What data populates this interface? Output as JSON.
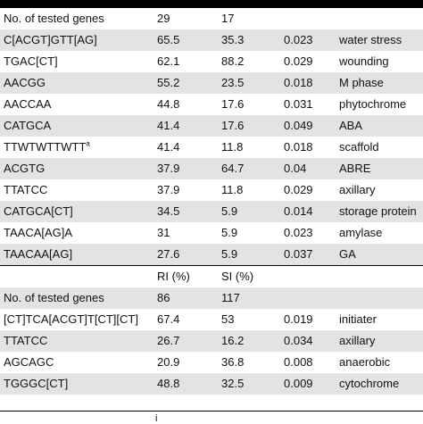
{
  "section1": {
    "header_count_label": "No. of tested genes",
    "header_count_values": [
      "29",
      "17"
    ],
    "rows": [
      {
        "motif": "C[ACGT]GTT[AG]",
        "v1": "65.5",
        "v2": "35.3",
        "p": "0.023",
        "func": "water stress",
        "sup": ""
      },
      {
        "motif": "TGAC[CT]",
        "v1": "62.1",
        "v2": "88.2",
        "p": "0.029",
        "func": "wounding",
        "sup": ""
      },
      {
        "motif": "AACGG",
        "v1": "55.2",
        "v2": "23.5",
        "p": "0.018",
        "func": "M phase",
        "sup": ""
      },
      {
        "motif": "AACCAA",
        "v1": "44.8",
        "v2": "17.6",
        "p": "0.031",
        "func": "phytochrome",
        "sup": ""
      },
      {
        "motif": "CATGCA",
        "v1": "41.4",
        "v2": "17.6",
        "p": "0.049",
        "func": "ABA",
        "sup": ""
      },
      {
        "motif": "TTWTWTTWTT",
        "v1": "41.4",
        "v2": "11.8",
        "p": "0.018",
        "func": "scaffold",
        "sup": "a"
      },
      {
        "motif": "ACGTG",
        "v1": "37.9",
        "v2": "64.7",
        "p": "0.04",
        "func": "ABRE",
        "sup": ""
      },
      {
        "motif": "TTATCC",
        "v1": "37.9",
        "v2": "11.8",
        "p": "0.029",
        "func": "axillary",
        "sup": ""
      },
      {
        "motif": "CATGCA[CT]",
        "v1": "34.5",
        "v2": "5.9",
        "p": "0.014",
        "func": "storage protein",
        "sup": ""
      },
      {
        "motif": "TAACA[AG]A",
        "v1": "31",
        "v2": "5.9",
        "p": "0.023",
        "func": "amylase",
        "sup": ""
      },
      {
        "motif": "TAACAA[AG]",
        "v1": "27.6",
        "v2": "5.9",
        "p": "0.037",
        "func": "GA",
        "sup": ""
      }
    ]
  },
  "section2": {
    "col_headers": [
      "RI (%)",
      "SI (%)"
    ],
    "header_count_label": "No. of tested genes",
    "header_count_values": [
      "86",
      "117"
    ],
    "rows": [
      {
        "motif": "[CT]TCA[ACGT]T[CT][CT]",
        "v1": "67.4",
        "v2": "53",
        "p": "0.019",
        "func": "initiater"
      },
      {
        "motif": "TTATCC",
        "v1": "26.7",
        "v2": "16.2",
        "p": "0.034",
        "func": "axillary"
      },
      {
        "motif": "AGCAGC",
        "v1": "20.9",
        "v2": "36.8",
        "p": "0.008",
        "func": "anaerobic"
      },
      {
        "motif": "TGGGC[CT]",
        "v1": "48.8",
        "v2": "32.5",
        "p": "0.009",
        "func": "cytochrome"
      }
    ]
  },
  "footer_fragment": "i"
}
